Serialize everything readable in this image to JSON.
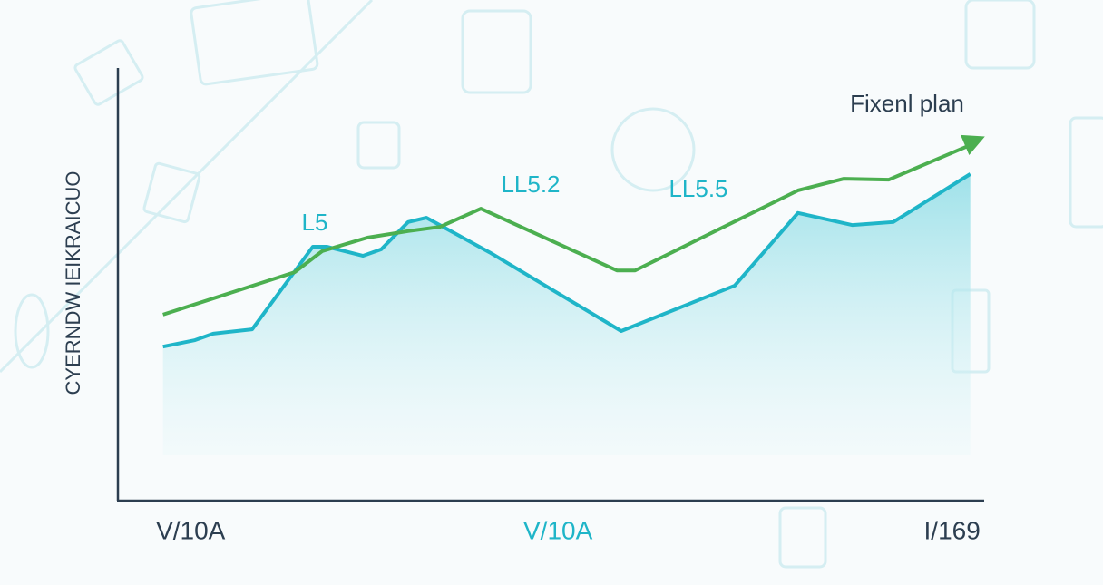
{
  "chart_data": {
    "type": "area-line",
    "ylabel": "CYERNDW IEIKRAICUO",
    "xlim": [
      0,
      100
    ],
    "ylim": [
      0,
      100
    ],
    "xticks": [
      {
        "value": 8.4,
        "label": "V/10A"
      },
      {
        "value": 50.8,
        "label": "V/10A"
      },
      {
        "value": 96.3,
        "label": "I/169"
      }
    ],
    "series": [
      {
        "color": "#1fb5c8",
        "fill": true,
        "x": [
          5.2,
          8.9,
          11,
          15.5,
          22.5,
          24.1,
          28.3,
          30.4,
          33.5,
          35.6,
          42.9,
          58.1,
          71.2,
          78.5,
          84.8,
          89.5,
          98.4
        ],
        "values": [
          35.6,
          37.1,
          38.6,
          39.6,
          58.7,
          58.7,
          56.6,
          58.1,
          64.4,
          65.4,
          57.4,
          39.2,
          49.7,
          66.5,
          63.7,
          64.4,
          75.5
        ]
      },
      {
        "name": "Fixenl plan",
        "color": "#4caf50",
        "arrow": true,
        "x": [
          5.2,
          20.4,
          23.6,
          28.8,
          33.5,
          37.2,
          41.9,
          57.6,
          59.7,
          78.5,
          83.8,
          89.0,
          98.4
        ],
        "values": [
          43.0,
          52.8,
          57.7,
          60.8,
          62.3,
          63.3,
          67.5,
          53.2,
          53.2,
          71.7,
          74.4,
          74.2,
          82.2
        ]
      }
    ],
    "annotations": [
      "L5",
      "LL5.2",
      "LL5.5"
    ]
  }
}
